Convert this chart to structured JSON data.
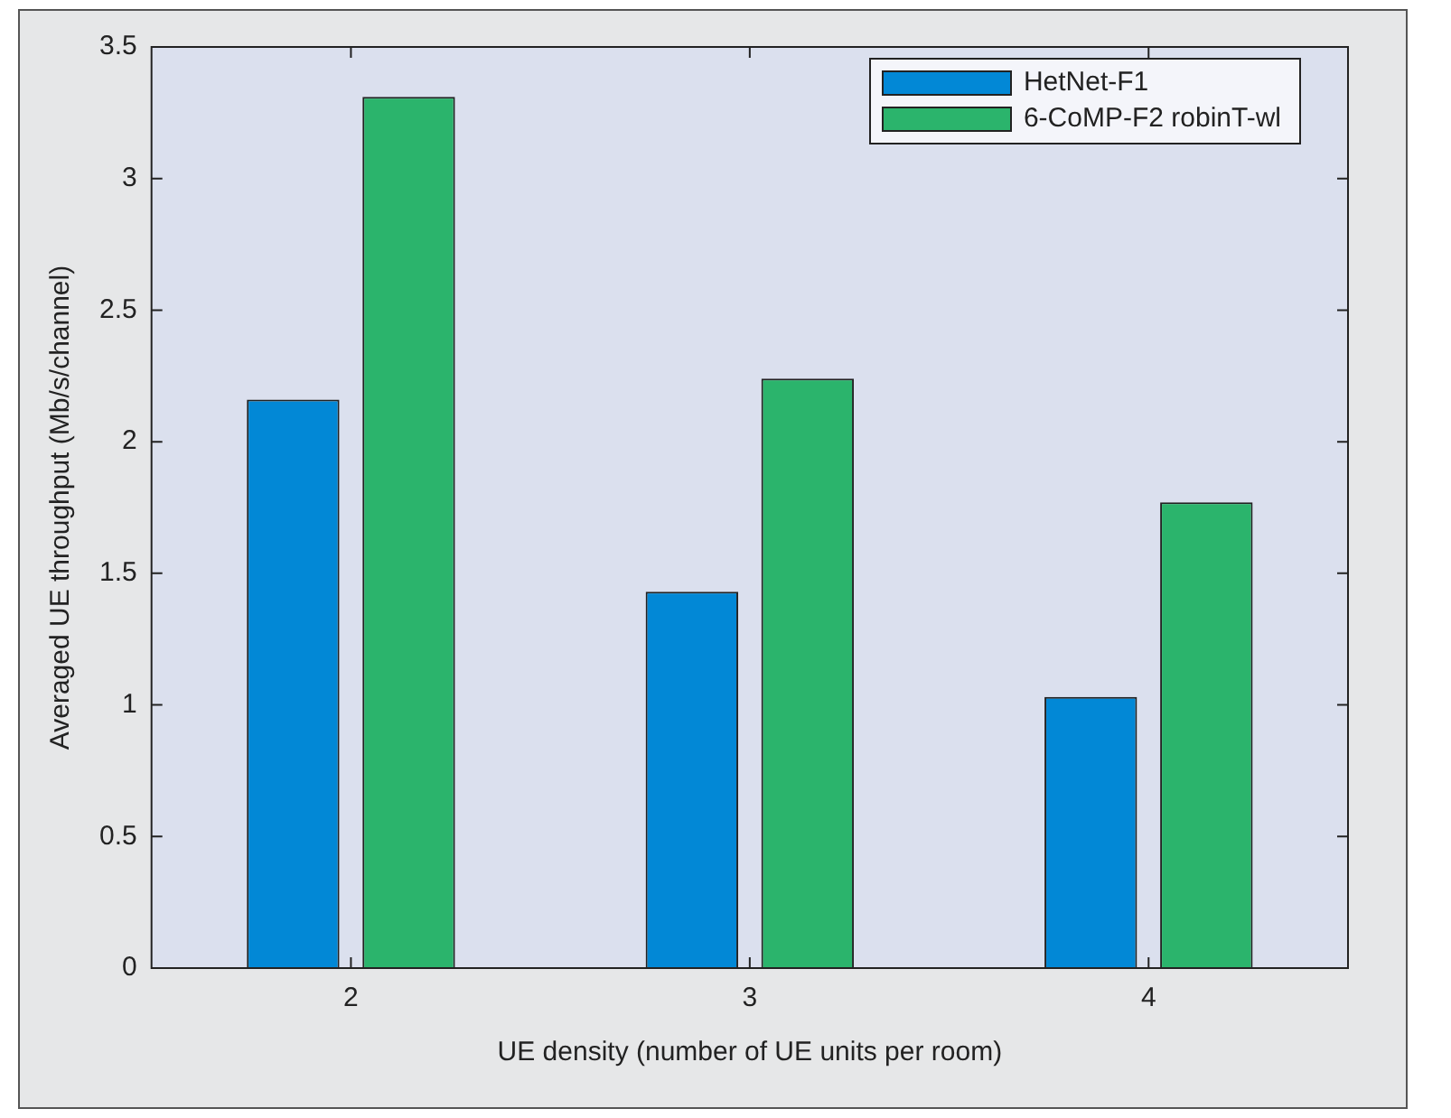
{
  "chart_data": {
    "type": "bar",
    "xlabel": "UE density (number of UE units per room)",
    "ylabel": "Averaged UE throughput (Mb/s/channel)",
    "categories": [
      "2",
      "3",
      "4"
    ],
    "series": [
      {
        "name": "HetNet-F1",
        "color": "#0288d6",
        "values": [
          2.16,
          1.43,
          1.03
        ]
      },
      {
        "name": "6-CoMP-F2 robinT-wl",
        "color": "#2bb46c",
        "values": [
          3.31,
          2.24,
          1.77
        ]
      }
    ],
    "ylim": [
      0,
      3.5
    ],
    "yticks": [
      0,
      0.5,
      1,
      1.5,
      2,
      2.5,
      3,
      3.5
    ],
    "grid": false,
    "legend": "top right"
  }
}
